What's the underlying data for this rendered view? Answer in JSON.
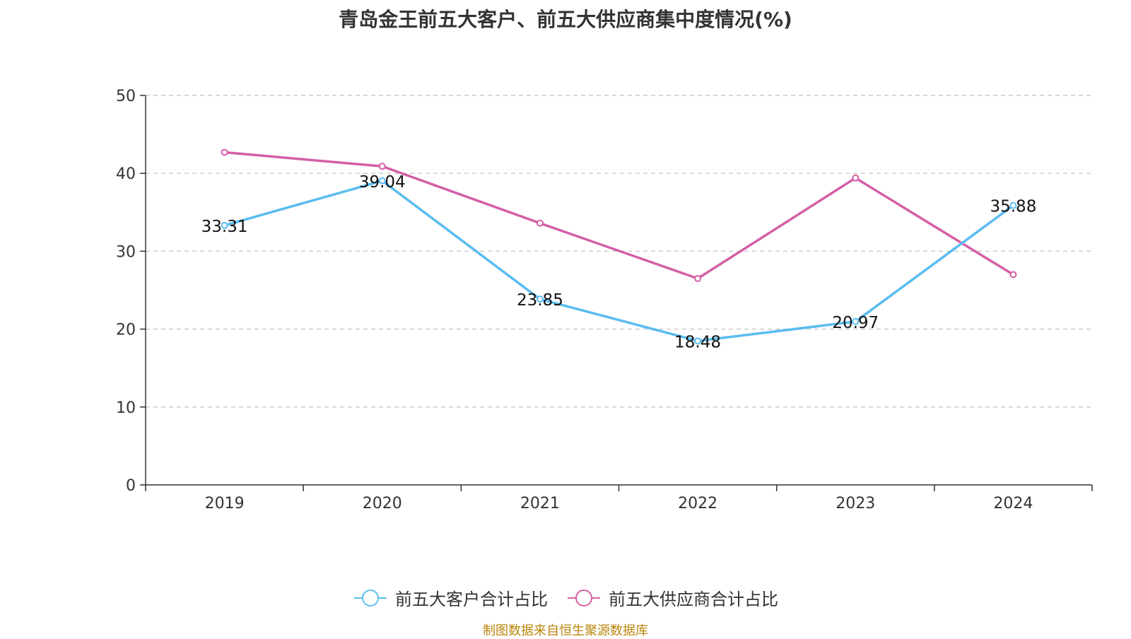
{
  "title": "青岛金王前五大客户、前五大供应商集中度情况(%)",
  "source_note": "制图数据来自恒生聚源数据库",
  "colors": {
    "source": "#b8860b",
    "axis": "#333333",
    "grid": "#cccccc"
  },
  "chart_data": {
    "type": "line",
    "categories": [
      "2019",
      "2020",
      "2021",
      "2022",
      "2023",
      "2024"
    ],
    "ylim": [
      0,
      50
    ],
    "yticks": [
      0,
      10,
      20,
      30,
      40,
      50
    ],
    "grid": true,
    "legend_position": "bottom",
    "series": [
      {
        "name": "前五大客户合计占比",
        "color": "#5bbcf0",
        "values": [
          33.31,
          39.04,
          23.85,
          18.48,
          20.97,
          35.88
        ],
        "labels": [
          "33.31",
          "39.04",
          "23.85",
          "18.48",
          "20.97",
          "35.88"
        ]
      },
      {
        "name": "前五大供应商合计占比",
        "color": "#d45fa6",
        "values": [
          42.7,
          40.9,
          33.6,
          26.5,
          39.4,
          27.0
        ]
      }
    ]
  }
}
